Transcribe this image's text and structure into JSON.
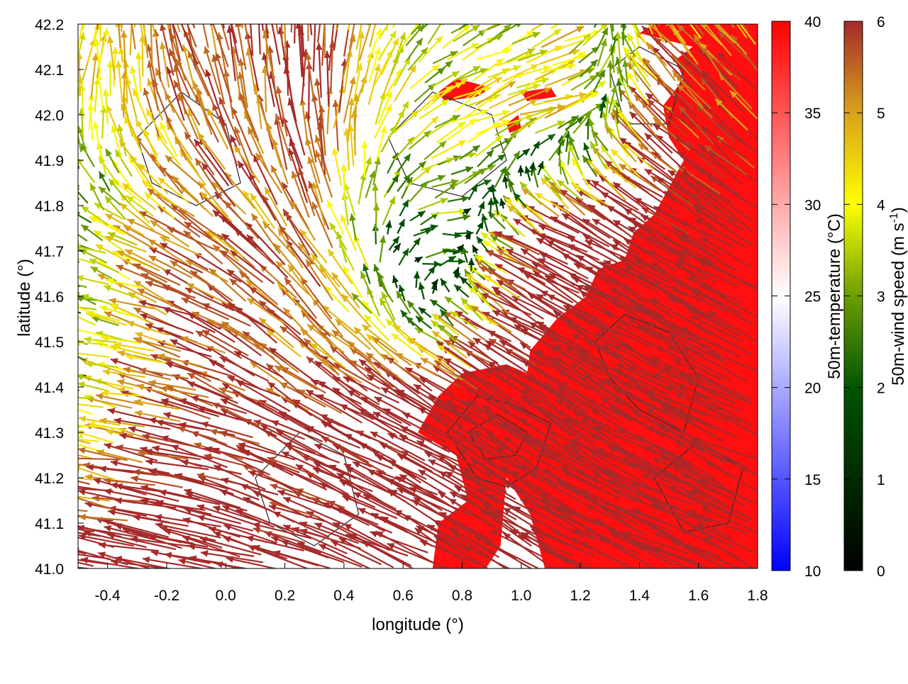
{
  "chart_data": {
    "type": "vector-field-heatmap",
    "xlabel": "longitude (°)",
    "ylabel": "latitude (°)",
    "xlim": [
      -0.5,
      1.8
    ],
    "ylim": [
      41.0,
      42.2
    ],
    "xticks": [
      "-0.4",
      "-0.2",
      "0.0",
      "0.2",
      "0.4",
      "0.6",
      "0.8",
      "1.0",
      "1.2",
      "1.4",
      "1.6",
      "1.8"
    ],
    "xtick_values": [
      -0.4,
      -0.2,
      0.0,
      0.2,
      0.4,
      0.6,
      0.8,
      1.0,
      1.2,
      1.4,
      1.6,
      1.8
    ],
    "yticks": [
      "41.0",
      "41.1",
      "41.2",
      "41.3",
      "41.4",
      "41.5",
      "41.6",
      "41.7",
      "41.8",
      "41.9",
      "42.0",
      "42.1",
      "42.2"
    ],
    "ytick_values": [
      41.0,
      41.1,
      41.2,
      41.3,
      41.4,
      41.5,
      41.6,
      41.7,
      41.8,
      41.9,
      42.0,
      42.1,
      42.2
    ],
    "grid": true,
    "temperature_colorbar": {
      "label": "50m-temperature (°C)",
      "range": [
        10,
        40
      ],
      "ticks": [
        "10",
        "15",
        "20",
        "25",
        "30",
        "35",
        "40"
      ],
      "tick_values": [
        10,
        15,
        20,
        25,
        30,
        35,
        40
      ],
      "colors": [
        "#0000ff",
        "#ffffff",
        "#ff0000"
      ]
    },
    "wind_colorbar": {
      "label": "50m-wind speed (m s",
      "label_sup": "-1",
      "label_end": ")",
      "range": [
        0,
        6
      ],
      "ticks": [
        "0",
        "1",
        "2",
        "3",
        "4",
        "5",
        "6"
      ],
      "tick_values": [
        0,
        1,
        2,
        3,
        4,
        5,
        6
      ],
      "colors": [
        "#000000",
        "#004d00",
        "#005a00",
        "#6b9e00",
        "#ffff00",
        "#d9a21b",
        "#a52a2a"
      ]
    },
    "warm_region_above_40C": [
      [
        [
          0.7,
          41.0
        ],
        [
          0.72,
          41.1
        ],
        [
          0.82,
          41.15
        ],
        [
          0.78,
          41.25
        ],
        [
          0.65,
          41.3
        ],
        [
          0.72,
          41.38
        ],
        [
          0.8,
          41.43
        ],
        [
          0.95,
          41.45
        ],
        [
          1.02,
          41.43
        ],
        [
          1.03,
          41.48
        ],
        [
          1.12,
          41.55
        ],
        [
          1.22,
          41.6
        ],
        [
          1.26,
          41.66
        ],
        [
          1.35,
          41.68
        ],
        [
          1.38,
          41.74
        ],
        [
          1.45,
          41.78
        ],
        [
          1.5,
          41.84
        ],
        [
          1.55,
          41.9
        ],
        [
          1.5,
          41.95
        ],
        [
          1.48,
          42.02
        ],
        [
          1.55,
          42.08
        ],
        [
          1.52,
          42.12
        ],
        [
          1.58,
          42.15
        ],
        [
          1.4,
          42.18
        ],
        [
          1.45,
          42.2
        ],
        [
          1.8,
          42.2
        ],
        [
          1.8,
          41.0
        ],
        [
          1.08,
          41.0
        ],
        [
          1.03,
          41.12
        ],
        [
          0.95,
          41.2
        ],
        [
          0.93,
          41.05
        ],
        [
          0.88,
          41.0
        ]
      ],
      [
        [
          1.22,
          41.38
        ],
        [
          1.25,
          41.15
        ],
        [
          1.2,
          41.12
        ],
        [
          1.17,
          41.3
        ],
        [
          1.2,
          41.38
        ]
      ],
      [
        [
          0.72,
          42.05
        ],
        [
          0.78,
          42.08
        ],
        [
          0.9,
          42.06
        ],
        [
          0.85,
          42.04
        ],
        [
          0.74,
          42.03
        ]
      ],
      [
        [
          1.0,
          42.05
        ],
        [
          1.1,
          42.06
        ],
        [
          1.12,
          42.04
        ],
        [
          1.02,
          42.03
        ]
      ],
      [
        [
          0.95,
          41.98
        ],
        [
          0.99,
          42.0
        ],
        [
          1.0,
          41.97
        ],
        [
          0.96,
          41.96
        ]
      ]
    ],
    "contours": [
      [
        [
          0.75,
          41.3
        ],
        [
          0.85,
          41.38
        ],
        [
          0.98,
          41.36
        ],
        [
          1.1,
          41.32
        ],
        [
          1.05,
          41.22
        ],
        [
          0.95,
          41.18
        ],
        [
          0.85,
          41.2
        ],
        [
          0.75,
          41.3
        ]
      ],
      [
        [
          0.82,
          41.3
        ],
        [
          0.92,
          41.34
        ],
        [
          1.02,
          41.3
        ],
        [
          0.98,
          41.25
        ],
        [
          0.88,
          41.24
        ],
        [
          0.82,
          41.3
        ]
      ],
      [
        [
          1.25,
          41.5
        ],
        [
          1.35,
          41.56
        ],
        [
          1.5,
          41.52
        ],
        [
          1.6,
          41.42
        ],
        [
          1.55,
          41.3
        ],
        [
          1.4,
          41.35
        ],
        [
          1.3,
          41.42
        ],
        [
          1.25,
          41.5
        ]
      ],
      [
        [
          1.45,
          41.2
        ],
        [
          1.6,
          41.28
        ],
        [
          1.75,
          41.22
        ],
        [
          1.7,
          41.1
        ],
        [
          1.55,
          41.08
        ],
        [
          1.45,
          41.2
        ]
      ],
      [
        [
          -0.3,
          41.95
        ],
        [
          -0.15,
          42.05
        ],
        [
          0.0,
          41.98
        ],
        [
          0.05,
          41.85
        ],
        [
          -0.1,
          41.8
        ],
        [
          -0.25,
          41.85
        ],
        [
          -0.3,
          41.95
        ]
      ],
      [
        [
          0.1,
          41.2
        ],
        [
          0.25,
          41.3
        ],
        [
          0.4,
          41.25
        ],
        [
          0.45,
          41.12
        ],
        [
          0.3,
          41.05
        ],
        [
          0.15,
          41.1
        ],
        [
          0.1,
          41.2
        ]
      ],
      [
        [
          0.55,
          41.95
        ],
        [
          0.7,
          42.05
        ],
        [
          0.9,
          42.0
        ],
        [
          0.95,
          41.9
        ],
        [
          0.8,
          41.82
        ],
        [
          0.62,
          41.85
        ],
        [
          0.55,
          41.95
        ]
      ],
      [
        [
          1.3,
          42.1
        ],
        [
          1.4,
          42.15
        ],
        [
          1.55,
          42.1
        ],
        [
          1.5,
          41.98
        ],
        [
          1.35,
          41.98
        ],
        [
          1.3,
          42.1
        ]
      ]
    ],
    "wind_grid": {
      "lon": [
        -0.5,
        -0.1,
        0.3,
        0.7,
        1.1,
        1.5,
        1.8
      ],
      "lat": [
        41.0,
        41.35,
        41.7,
        42.0,
        42.2
      ],
      "u": [
        [
          -6.5,
          -7,
          -6.5,
          -6,
          -6,
          -6.5,
          -6.5
        ],
        [
          -3,
          -6,
          -5,
          -6,
          -6,
          -6.5,
          -6.5
        ],
        [
          -2.5,
          -5,
          -3,
          3,
          -6,
          -6,
          -6
        ],
        [
          0.5,
          -2,
          0,
          3.5,
          4.5,
          -4,
          -4
        ],
        [
          1,
          -1.5,
          0,
          2,
          4,
          -3,
          -3
        ]
      ],
      "v": [
        [
          1,
          1.5,
          2,
          3,
          3.5,
          3,
          3
        ],
        [
          0.3,
          1.5,
          3,
          3.5,
          4,
          3.5,
          3
        ],
        [
          1,
          2.5,
          5,
          0,
          3,
          3.5,
          3.5
        ],
        [
          4,
          5.5,
          6,
          2,
          1.5,
          4,
          4
        ],
        [
          4.5,
          5.5,
          6,
          2,
          1.5,
          4,
          4
        ]
      ]
    }
  }
}
